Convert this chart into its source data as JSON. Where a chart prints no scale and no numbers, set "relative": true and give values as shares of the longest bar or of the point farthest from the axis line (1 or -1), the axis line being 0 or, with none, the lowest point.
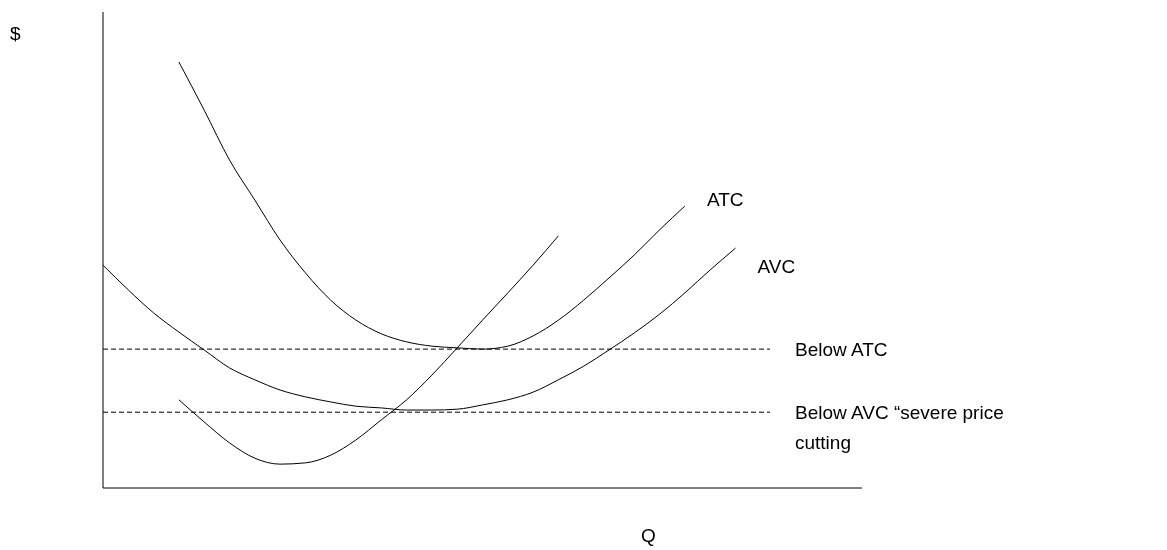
{
  "chart_data": {
    "type": "line",
    "relative": true,
    "xlabel": "Q",
    "ylabel": "$",
    "categories": [
      null,
      null,
      null,
      null,
      null,
      null,
      null,
      null,
      null,
      null,
      null,
      null,
      null,
      null,
      null,
      null,
      null,
      null,
      null,
      null,
      null,
      null,
      null,
      null,
      null,
      null,
      null,
      null,
      null,
      null,
      null
    ],
    "series": [
      {
        "name": "ATC",
        "color": "#000000",
        "values": [
          null,
          null,
          null,
          1.0,
          0.887,
          0.77,
          0.676,
          0.582,
          0.505,
          0.441,
          0.394,
          0.362,
          0.343,
          0.333,
          0.329,
          0.326,
          0.333,
          0.357,
          0.394,
          0.441,
          0.493,
          0.547,
          0.606,
          0.662,
          null,
          null,
          null,
          null,
          null,
          null,
          null
        ]
      },
      {
        "name": "AVC",
        "color": "#000000",
        "values": [
          0.523,
          0.465,
          0.411,
          0.366,
          0.324,
          0.282,
          0.254,
          0.23,
          0.214,
          0.202,
          0.192,
          0.188,
          0.183,
          0.183,
          0.185,
          0.195,
          0.207,
          0.225,
          0.254,
          0.286,
          0.324,
          0.364,
          0.408,
          0.458,
          0.512,
          0.563,
          null,
          null,
          null,
          null,
          null
        ]
      },
      {
        "color": "#000000",
        "values": [
          null,
          null,
          null,
          0.207,
          0.155,
          0.106,
          0.07,
          0.056,
          0.059,
          0.077,
          0.113,
          0.16,
          0.207,
          0.265,
          0.329,
          0.394,
          0.458,
          0.523,
          0.592,
          null,
          null,
          null,
          null,
          null,
          null,
          null,
          null,
          null,
          null,
          null,
          null
        ]
      }
    ],
    "ref_lines": [
      {
        "axis": "y",
        "value": 0.326,
        "label": "Below ATC",
        "color": "#000000",
        "line_style": "dashed"
      },
      {
        "axis": "y",
        "value": 0.178,
        "label": "Below AVC “severe price cutting",
        "color": "#000000",
        "line_style": "dashed"
      }
    ],
    "marker": "none",
    "line_style": "solid"
  }
}
